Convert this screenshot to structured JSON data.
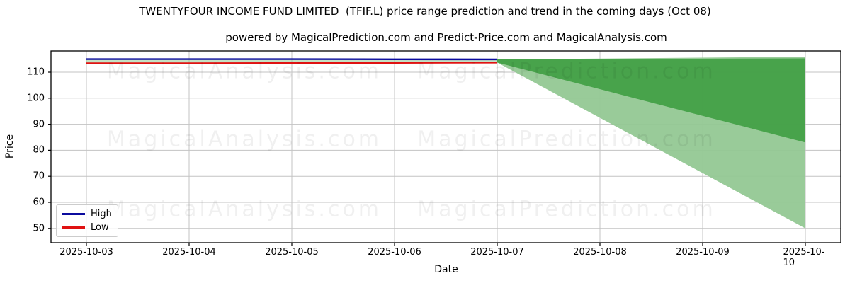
{
  "header": {
    "title": "TWENTYFOUR INCOME FUND LIMITED  (TFIF.L) price range prediction and trend in the coming days (Oct 08)",
    "subtitle": "powered by MagicalPrediction.com and Predict-Price.com and MagicalAnalysis.com"
  },
  "watermarks": {
    "left_text": "MagicalAnalysis.com",
    "right_text": "MagicalPrediction.com"
  },
  "chart_data": {
    "type": "line",
    "title": "TWENTYFOUR INCOME FUND LIMITED  (TFIF.L) price range prediction and trend in the coming days (Oct 08)",
    "xlabel": "Date",
    "ylabel": "Price",
    "categories": [
      "2025-10-03",
      "2025-10-04",
      "2025-10-05",
      "2025-10-06",
      "2025-10-07",
      "2025-10-08",
      "2025-10-09",
      "2025-10-10"
    ],
    "y_ticks": [
      50,
      60,
      70,
      80,
      90,
      100,
      110
    ],
    "ylim": [
      45,
      118.5
    ],
    "grid": true,
    "grid_color": "#c3c3c3",
    "legend": {
      "position": "lower-left",
      "entries": [
        {
          "label": "High",
          "color": "#0b0b9e"
        },
        {
          "label": "Low",
          "color": "#e01212"
        }
      ]
    },
    "series": [
      {
        "name": "High",
        "color": "#0b0b9e",
        "x": [
          "2025-10-03",
          "2025-10-04",
          "2025-10-05",
          "2025-10-06",
          "2025-10-07"
        ],
        "values": [
          115.0,
          115.0,
          115.0,
          114.95,
          114.9
        ]
      },
      {
        "name": "Low",
        "color": "#e01212",
        "x": [
          "2025-10-03",
          "2025-10-04",
          "2025-10-05",
          "2025-10-06",
          "2025-10-07"
        ],
        "values": [
          113.4,
          113.4,
          113.5,
          113.6,
          113.7
        ]
      }
    ],
    "bands": [
      {
        "name": "history-high-low-range",
        "color": "#93c893",
        "opacity": 0.55,
        "x": [
          "2025-10-03",
          "2025-10-07"
        ],
        "upper": [
          115.0,
          114.9
        ],
        "lower": [
          113.4,
          113.7
        ]
      },
      {
        "name": "prediction-outer-range",
        "color": "#93c893",
        "opacity": 0.95,
        "x": [
          "2025-10-07",
          "2025-10-10"
        ],
        "upper": [
          114.9,
          115.9
        ],
        "lower": [
          113.7,
          50.0
        ]
      },
      {
        "name": "prediction-inner-range",
        "color": "#43a047",
        "opacity": 0.95,
        "x": [
          "2025-10-07",
          "2025-10-10"
        ],
        "upper": [
          114.9,
          115.3
        ],
        "lower": [
          113.7,
          83.0
        ]
      }
    ]
  }
}
